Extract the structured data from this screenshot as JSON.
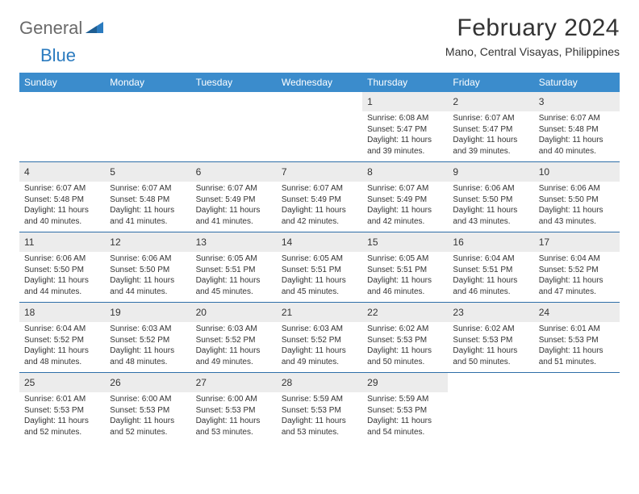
{
  "brand": {
    "part1": "General",
    "part2": "Blue"
  },
  "title": "February 2024",
  "subtitle": "Mano, Central Visayas, Philippines",
  "colors": {
    "header_bg": "#3b8ccc",
    "week_divider": "#2f6ea8",
    "daynum_bg": "#ececec",
    "text": "#333333",
    "logo_gray": "#6a6a6a",
    "logo_blue": "#2b7bbf",
    "background": "#ffffff"
  },
  "dow": [
    "Sunday",
    "Monday",
    "Tuesday",
    "Wednesday",
    "Thursday",
    "Friday",
    "Saturday"
  ],
  "weeks": [
    [
      {
        "day": "",
        "sunrise": "",
        "sunset": "",
        "daylight": ""
      },
      {
        "day": "",
        "sunrise": "",
        "sunset": "",
        "daylight": ""
      },
      {
        "day": "",
        "sunrise": "",
        "sunset": "",
        "daylight": ""
      },
      {
        "day": "",
        "sunrise": "",
        "sunset": "",
        "daylight": ""
      },
      {
        "day": "1",
        "sunrise": "Sunrise: 6:08 AM",
        "sunset": "Sunset: 5:47 PM",
        "daylight": "Daylight: 11 hours and 39 minutes."
      },
      {
        "day": "2",
        "sunrise": "Sunrise: 6:07 AM",
        "sunset": "Sunset: 5:47 PM",
        "daylight": "Daylight: 11 hours and 39 minutes."
      },
      {
        "day": "3",
        "sunrise": "Sunrise: 6:07 AM",
        "sunset": "Sunset: 5:48 PM",
        "daylight": "Daylight: 11 hours and 40 minutes."
      }
    ],
    [
      {
        "day": "4",
        "sunrise": "Sunrise: 6:07 AM",
        "sunset": "Sunset: 5:48 PM",
        "daylight": "Daylight: 11 hours and 40 minutes."
      },
      {
        "day": "5",
        "sunrise": "Sunrise: 6:07 AM",
        "sunset": "Sunset: 5:48 PM",
        "daylight": "Daylight: 11 hours and 41 minutes."
      },
      {
        "day": "6",
        "sunrise": "Sunrise: 6:07 AM",
        "sunset": "Sunset: 5:49 PM",
        "daylight": "Daylight: 11 hours and 41 minutes."
      },
      {
        "day": "7",
        "sunrise": "Sunrise: 6:07 AM",
        "sunset": "Sunset: 5:49 PM",
        "daylight": "Daylight: 11 hours and 42 minutes."
      },
      {
        "day": "8",
        "sunrise": "Sunrise: 6:07 AM",
        "sunset": "Sunset: 5:49 PM",
        "daylight": "Daylight: 11 hours and 42 minutes."
      },
      {
        "day": "9",
        "sunrise": "Sunrise: 6:06 AM",
        "sunset": "Sunset: 5:50 PM",
        "daylight": "Daylight: 11 hours and 43 minutes."
      },
      {
        "day": "10",
        "sunrise": "Sunrise: 6:06 AM",
        "sunset": "Sunset: 5:50 PM",
        "daylight": "Daylight: 11 hours and 43 minutes."
      }
    ],
    [
      {
        "day": "11",
        "sunrise": "Sunrise: 6:06 AM",
        "sunset": "Sunset: 5:50 PM",
        "daylight": "Daylight: 11 hours and 44 minutes."
      },
      {
        "day": "12",
        "sunrise": "Sunrise: 6:06 AM",
        "sunset": "Sunset: 5:50 PM",
        "daylight": "Daylight: 11 hours and 44 minutes."
      },
      {
        "day": "13",
        "sunrise": "Sunrise: 6:05 AM",
        "sunset": "Sunset: 5:51 PM",
        "daylight": "Daylight: 11 hours and 45 minutes."
      },
      {
        "day": "14",
        "sunrise": "Sunrise: 6:05 AM",
        "sunset": "Sunset: 5:51 PM",
        "daylight": "Daylight: 11 hours and 45 minutes."
      },
      {
        "day": "15",
        "sunrise": "Sunrise: 6:05 AM",
        "sunset": "Sunset: 5:51 PM",
        "daylight": "Daylight: 11 hours and 46 minutes."
      },
      {
        "day": "16",
        "sunrise": "Sunrise: 6:04 AM",
        "sunset": "Sunset: 5:51 PM",
        "daylight": "Daylight: 11 hours and 46 minutes."
      },
      {
        "day": "17",
        "sunrise": "Sunrise: 6:04 AM",
        "sunset": "Sunset: 5:52 PM",
        "daylight": "Daylight: 11 hours and 47 minutes."
      }
    ],
    [
      {
        "day": "18",
        "sunrise": "Sunrise: 6:04 AM",
        "sunset": "Sunset: 5:52 PM",
        "daylight": "Daylight: 11 hours and 48 minutes."
      },
      {
        "day": "19",
        "sunrise": "Sunrise: 6:03 AM",
        "sunset": "Sunset: 5:52 PM",
        "daylight": "Daylight: 11 hours and 48 minutes."
      },
      {
        "day": "20",
        "sunrise": "Sunrise: 6:03 AM",
        "sunset": "Sunset: 5:52 PM",
        "daylight": "Daylight: 11 hours and 49 minutes."
      },
      {
        "day": "21",
        "sunrise": "Sunrise: 6:03 AM",
        "sunset": "Sunset: 5:52 PM",
        "daylight": "Daylight: 11 hours and 49 minutes."
      },
      {
        "day": "22",
        "sunrise": "Sunrise: 6:02 AM",
        "sunset": "Sunset: 5:53 PM",
        "daylight": "Daylight: 11 hours and 50 minutes."
      },
      {
        "day": "23",
        "sunrise": "Sunrise: 6:02 AM",
        "sunset": "Sunset: 5:53 PM",
        "daylight": "Daylight: 11 hours and 50 minutes."
      },
      {
        "day": "24",
        "sunrise": "Sunrise: 6:01 AM",
        "sunset": "Sunset: 5:53 PM",
        "daylight": "Daylight: 11 hours and 51 minutes."
      }
    ],
    [
      {
        "day": "25",
        "sunrise": "Sunrise: 6:01 AM",
        "sunset": "Sunset: 5:53 PM",
        "daylight": "Daylight: 11 hours and 52 minutes."
      },
      {
        "day": "26",
        "sunrise": "Sunrise: 6:00 AM",
        "sunset": "Sunset: 5:53 PM",
        "daylight": "Daylight: 11 hours and 52 minutes."
      },
      {
        "day": "27",
        "sunrise": "Sunrise: 6:00 AM",
        "sunset": "Sunset: 5:53 PM",
        "daylight": "Daylight: 11 hours and 53 minutes."
      },
      {
        "day": "28",
        "sunrise": "Sunrise: 5:59 AM",
        "sunset": "Sunset: 5:53 PM",
        "daylight": "Daylight: 11 hours and 53 minutes."
      },
      {
        "day": "29",
        "sunrise": "Sunrise: 5:59 AM",
        "sunset": "Sunset: 5:53 PM",
        "daylight": "Daylight: 11 hours and 54 minutes."
      },
      {
        "day": "",
        "sunrise": "",
        "sunset": "",
        "daylight": ""
      },
      {
        "day": "",
        "sunrise": "",
        "sunset": "",
        "daylight": ""
      }
    ]
  ]
}
